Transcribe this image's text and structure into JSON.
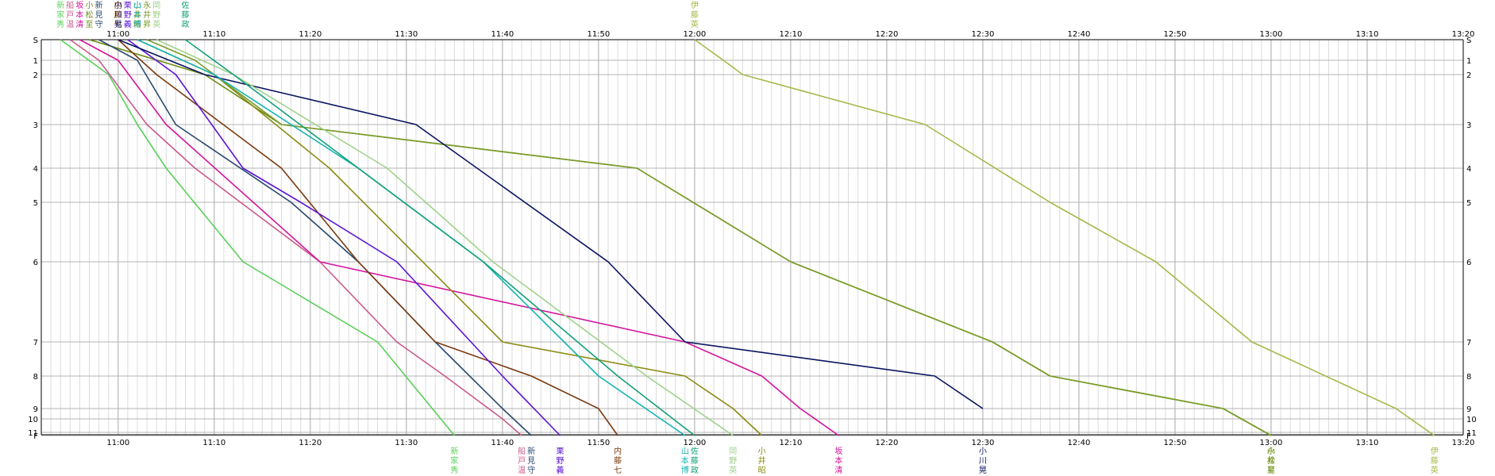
{
  "chart_data": {
    "type": "line",
    "title": "",
    "xlabel": "",
    "ylabel": "",
    "x_unit": "time (HH:MM)",
    "x_range": [
      "10:52",
      "13:20"
    ],
    "x_ticks": [
      "11:00",
      "11:10",
      "11:20",
      "11:30",
      "11:40",
      "11:50",
      "12:00",
      "12:10",
      "12:20",
      "12:30",
      "12:40",
      "12:50",
      "13:00",
      "13:10",
      "13:20"
    ],
    "checkpoints": [
      "S",
      "1",
      "2",
      "3",
      "4",
      "5",
      "6",
      "7",
      "8",
      "9",
      "10",
      "11",
      "F"
    ],
    "checkpoint_labels": {
      "S": "S",
      "1": "1",
      "2": "2",
      "3": "3",
      "4": "4",
      "5": "5",
      "6": "6",
      "7": "7",
      "8": "8",
      "9": "9",
      "10": "10",
      "11": "11",
      "F": "F"
    },
    "grid": true,
    "legend": "runner names printed vertically at the top (start) and bottom (finish / last point) of each line",
    "series": [
      {
        "name": "新家秀",
        "color": "#5ad05a",
        "points": [
          [
            "10:54",
            "S"
          ],
          [
            "10:59",
            "2"
          ],
          [
            "11:02",
            "3"
          ],
          [
            "11:05",
            "4"
          ],
          [
            "11:13",
            "6"
          ],
          [
            "11:27",
            "7"
          ],
          [
            "11:35",
            "F"
          ]
        ]
      },
      {
        "name": "船戸温",
        "color": "#c85a8c",
        "points": [
          [
            "10:55",
            "S"
          ],
          [
            "10:58",
            "1"
          ],
          [
            "11:03",
            "3"
          ],
          [
            "11:08",
            "4"
          ],
          [
            "11:21",
            "6"
          ],
          [
            "11:29",
            "7"
          ],
          [
            "11:34",
            "8"
          ],
          [
            "11:40",
            "10"
          ],
          [
            "11:42",
            "F"
          ]
        ]
      },
      {
        "name": "坂本清",
        "color": "#d4149c",
        "points": [
          [
            "10:56",
            "S"
          ],
          [
            "11:00",
            "1"
          ],
          [
            "11:05",
            "3"
          ],
          [
            "11:21",
            "6"
          ],
          [
            "11:59",
            "7"
          ],
          [
            "12:07",
            "8"
          ],
          [
            "12:11",
            "9"
          ],
          [
            "12:15",
            "F"
          ]
        ]
      },
      {
        "name": "小松至",
        "color": "#6e8c14",
        "points": [
          [
            "10:57",
            "S"
          ],
          [
            "11:09",
            "2"
          ],
          [
            "11:17",
            "3"
          ],
          [
            "11:54",
            "4"
          ],
          [
            "12:10",
            "6"
          ],
          [
            "12:31",
            "7"
          ],
          [
            "12:37",
            "8"
          ],
          [
            "12:55",
            "9"
          ],
          [
            "13:00",
            "F"
          ]
        ]
      },
      {
        "name": "新見守",
        "color": "#2a4a6e",
        "points": [
          [
            "10:58",
            "S"
          ],
          [
            "11:02",
            "1"
          ],
          [
            "11:06",
            "3"
          ],
          [
            "11:18",
            "5"
          ],
          [
            "11:25",
            "6"
          ],
          [
            "11:33",
            "7"
          ],
          [
            "11:40",
            "9"
          ],
          [
            "11:43",
            "F"
          ]
        ]
      },
      {
        "name": "内藤七",
        "color": "#7a3a10",
        "points": [
          [
            "11:00",
            "S"
          ],
          [
            "11:04",
            "2"
          ],
          [
            "11:17",
            "4"
          ],
          [
            "11:25",
            "6"
          ],
          [
            "11:33",
            "7"
          ],
          [
            "11:43",
            "8"
          ],
          [
            "11:50",
            "9"
          ],
          [
            "11:52",
            "F"
          ]
        ]
      },
      {
        "name": "栗野義",
        "color": "#5a14d4",
        "points": [
          [
            "11:01",
            "S"
          ],
          [
            "11:06",
            "2"
          ],
          [
            "11:13",
            "4"
          ],
          [
            "11:19",
            "5"
          ],
          [
            "11:29",
            "6"
          ],
          [
            "11:40",
            "8"
          ],
          [
            "11:46",
            "F"
          ]
        ]
      },
      {
        "name": "小井昭",
        "color": "#8c8c14",
        "points": [
          [
            "11:02",
            "S"
          ],
          [
            "11:10",
            "2"
          ],
          [
            "11:22",
            "4"
          ],
          [
            "11:40",
            "7"
          ],
          [
            "11:59",
            "8"
          ],
          [
            "12:04",
            "9"
          ],
          [
            "12:07",
            "F"
          ]
        ]
      },
      {
        "name": "永井昇",
        "color": "#7a9c2a",
        "points": [
          [
            "11:03",
            "S"
          ],
          [
            "11:08",
            "1"
          ],
          [
            "11:17",
            "3"
          ],
          [
            "11:54",
            "4"
          ],
          [
            "12:10",
            "6"
          ],
          [
            "12:31",
            "7"
          ],
          [
            "12:37",
            "8"
          ],
          [
            "12:55",
            "9"
          ],
          [
            "13:00",
            "F"
          ]
        ]
      },
      {
        "name": "小川晃",
        "color": "#0a1460",
        "points": [
          [
            "11:00",
            "S"
          ],
          [
            "11:09",
            "2"
          ],
          [
            "11:31",
            "3"
          ],
          [
            "11:51",
            "6"
          ],
          [
            "11:59",
            "7"
          ],
          [
            "12:25",
            "8"
          ],
          [
            "12:30",
            "9"
          ]
        ]
      },
      {
        "name": "山本博",
        "color": "#14b4b4",
        "points": [
          [
            "11:02",
            "S"
          ],
          [
            "11:10",
            "2"
          ],
          [
            "11:25",
            "4"
          ],
          [
            "11:38",
            "6"
          ],
          [
            "11:50",
            "8"
          ],
          [
            "11:59",
            "F"
          ]
        ]
      },
      {
        "name": "岡野英",
        "color": "#a0d28c",
        "points": [
          [
            "11:04",
            "S"
          ],
          [
            "11:12",
            "2"
          ],
          [
            "11:28",
            "4"
          ],
          [
            "11:39",
            "6"
          ],
          [
            "11:55",
            "8"
          ],
          [
            "12:04",
            "F"
          ]
        ]
      },
      {
        "name": "佐藤政",
        "color": "#14a07a",
        "points": [
          [
            "11:07",
            "S"
          ],
          [
            "11:12",
            "2"
          ],
          [
            "11:25",
            "4"
          ],
          [
            "11:38",
            "6"
          ],
          [
            "11:52",
            "8"
          ],
          [
            "12:00",
            "F"
          ]
        ]
      },
      {
        "name": "伊藤英",
        "color": "#a8b84a",
        "points": [
          [
            "12:00",
            "S"
          ],
          [
            "12:03",
            "1"
          ],
          [
            "12:05",
            "2"
          ],
          [
            "12:24",
            "3"
          ],
          [
            "12:37",
            "5"
          ],
          [
            "12:48",
            "6"
          ],
          [
            "12:58",
            "7"
          ],
          [
            "13:13",
            "9"
          ],
          [
            "13:17",
            "F"
          ]
        ]
      }
    ]
  }
}
